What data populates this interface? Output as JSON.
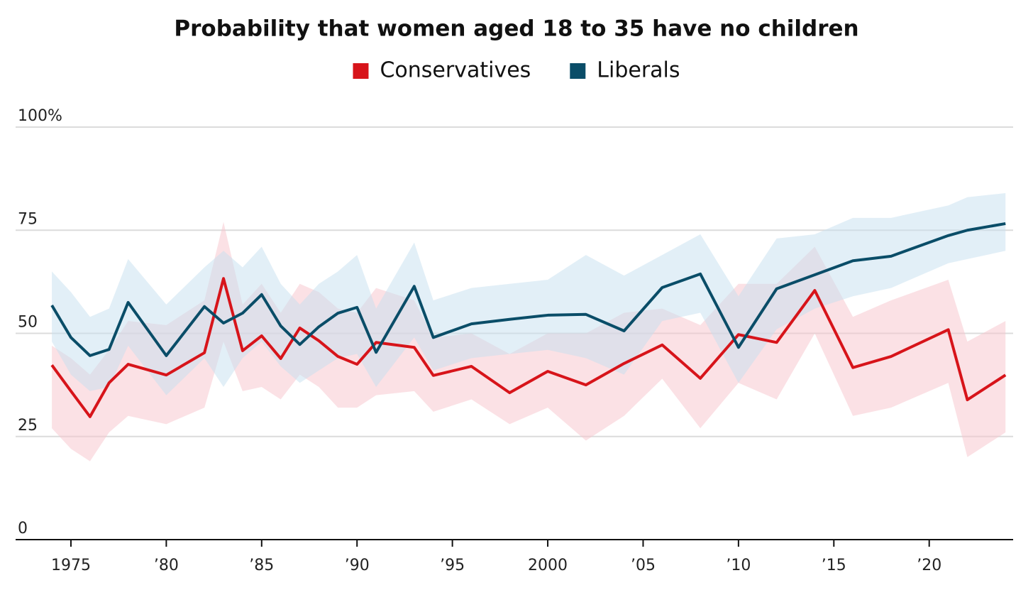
{
  "chart_data": {
    "type": "line",
    "title": "Probability that women aged 18 to 35 have no children",
    "x": [
      1974,
      1975,
      1976,
      1977,
      1978,
      1980,
      1982,
      1983,
      1984,
      1985,
      1986,
      1987,
      1988,
      1989,
      1990,
      1991,
      1993,
      1994,
      1996,
      1998,
      2000,
      2002,
      2004,
      2006,
      2008,
      2010,
      2012,
      2014,
      2016,
      2018,
      2021,
      2022,
      2024
    ],
    "series": [
      {
        "name": "Conservatives",
        "color": "#d7141a",
        "band_color": "#f7c3cb",
        "values": [
          42.3,
          36,
          29.8,
          38,
          42.5,
          39.9,
          45.3,
          63.3,
          45.8,
          49.4,
          43.9,
          51.3,
          48.2,
          44.4,
          42.5,
          47.8,
          46.6,
          39.8,
          42,
          35.6,
          40.8,
          37.5,
          42.7,
          47.2,
          39.1,
          49.7,
          47.8,
          60.4,
          41.7,
          44.4,
          50.9,
          33.9,
          39.9
        ],
        "lower": [
          27,
          22,
          19,
          26,
          30,
          28,
          32,
          48,
          36,
          37,
          34,
          40,
          37,
          32,
          32,
          35,
          36,
          31,
          34,
          28,
          32,
          24,
          30,
          39,
          27,
          38,
          34,
          50,
          30,
          32,
          38,
          20,
          26
        ],
        "upper": [
          47,
          44,
          40,
          46,
          53,
          52,
          58,
          77,
          57,
          62,
          55,
          62,
          60,
          56,
          55,
          61,
          58,
          49,
          50,
          45,
          50,
          50,
          55,
          56,
          52,
          62,
          62,
          71,
          54,
          58,
          63,
          48,
          53
        ]
      },
      {
        "name": "Liberals",
        "color": "#0a4d68",
        "band_color": "#c6dff0",
        "values": [
          56.8,
          49,
          44.6,
          46.1,
          57.5,
          44.6,
          56.5,
          52.5,
          54.9,
          59.4,
          51.8,
          47.3,
          51.6,
          54.9,
          56.3,
          45.4,
          61.4,
          49,
          52.3,
          53.4,
          54.4,
          54.6,
          50.6,
          61.1,
          64.4,
          46.6,
          60.8,
          64.2,
          67.6,
          68.7,
          73.7,
          75,
          76.6
        ],
        "lower": [
          48,
          40,
          36,
          37,
          47,
          35,
          44,
          37,
          44,
          48,
          42,
          38,
          41,
          44,
          45,
          37,
          49,
          41,
          44,
          45,
          46,
          44,
          40,
          53,
          55,
          38,
          51,
          56,
          59,
          61,
          67,
          68,
          70
        ],
        "upper": [
          65,
          60,
          54,
          56,
          68,
          57,
          66,
          70,
          66,
          71,
          62,
          57,
          62,
          65,
          69,
          56,
          72,
          58,
          61,
          62,
          63,
          69,
          64,
          69,
          74,
          59,
          73,
          74,
          78,
          78,
          81,
          83,
          84
        ]
      }
    ],
    "xlim": [
      1972.1,
      2024.4
    ],
    "xticks": [
      1975,
      {
        "value": 1980,
        "label": "’80"
      },
      {
        "value": 1985,
        "label": "’85"
      },
      {
        "value": 1990,
        "label": "’90"
      },
      {
        "value": 1995,
        "label": "’95"
      },
      2000,
      {
        "value": 2005,
        "label": "’05"
      },
      {
        "value": 2010,
        "label": "’10"
      },
      {
        "value": 2015,
        "label": "’15"
      },
      {
        "value": 2020,
        "label": "’20"
      }
    ],
    "ylim": [
      0,
      100
    ],
    "yticks": [
      0,
      25,
      50,
      75,
      {
        "value": 100,
        "label": "100%"
      }
    ],
    "grid": true
  }
}
